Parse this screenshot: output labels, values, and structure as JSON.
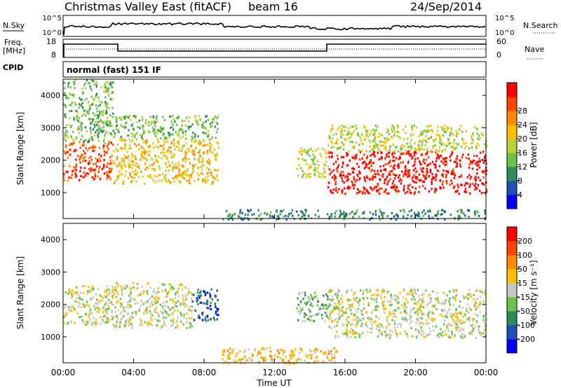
{
  "header": {
    "title": "Christmas Valley East (fitACF)",
    "beam": "beam 16",
    "date": "24/Sep/2014"
  },
  "summary": {
    "nsky_label": "N.Sky",
    "nsky_ticks": [
      "10^5",
      "10^0"
    ],
    "nsearch_label": "N.Search",
    "nsearch_ticks": [
      "10^5",
      "10^0"
    ],
    "freq_label": "Freq.",
    "freq_unit": "[MHz]",
    "freq_ticks": [
      "18",
      "8"
    ],
    "nave_label": "Nave",
    "nave_ticks": [
      "60",
      "0"
    ],
    "cpid_label": "CPID",
    "cpid_text": "normal (fast) 151 IF"
  },
  "chart_data": [
    {
      "type": "heatmap",
      "name": "power-panel",
      "ylabel": "Slant Range [km]",
      "yticks": [
        1000,
        2000,
        3000,
        4000
      ],
      "ylim": [
        200,
        4500
      ],
      "xlim": [
        0,
        24
      ],
      "colorbar": {
        "label": "Power [dB]",
        "ticks": [
          "4",
          "8",
          "12",
          "16",
          "20",
          "24",
          "28"
        ],
        "colors": [
          "#0000ff",
          "#1f4fb0",
          "#2e8b57",
          "#6ac24a",
          "#b8d435",
          "#ffc000",
          "#ff8c00",
          "#ff4500",
          "#ff0000"
        ]
      },
      "regions": [
        {
          "t": [
            0.0,
            2.8
          ],
          "r": [
            1400,
            2600
          ],
          "level": 7
        },
        {
          "t": [
            0.0,
            2.8
          ],
          "r": [
            2600,
            4500
          ],
          "level": 3
        },
        {
          "t": [
            2.8,
            8.8
          ],
          "r": [
            1300,
            2700
          ],
          "level": 5
        },
        {
          "t": [
            2.8,
            8.8
          ],
          "r": [
            2700,
            3400
          ],
          "level": 3
        },
        {
          "t": [
            13.2,
            15.0
          ],
          "r": [
            1500,
            2400
          ],
          "level": 4
        },
        {
          "t": [
            15.0,
            24.0
          ],
          "r": [
            1000,
            2300
          ],
          "level": 8
        },
        {
          "t": [
            15.0,
            24.0
          ],
          "r": [
            2300,
            3100
          ],
          "level": 4
        },
        {
          "t": [
            9.0,
            24.0
          ],
          "r": [
            200,
            500
          ],
          "level": 2
        }
      ]
    },
    {
      "type": "heatmap",
      "name": "velocity-panel",
      "ylabel": "Slant Range [km]",
      "yticks": [
        1000,
        2000,
        3000,
        4000
      ],
      "ylim": [
        200,
        4500
      ],
      "xlim": [
        0,
        24
      ],
      "xlabel": "Time UT",
      "xticks": [
        "00:00",
        "04:00",
        "08:00",
        "12:00",
        "16:00",
        "20:00",
        "00:00"
      ],
      "colorbar": {
        "label": "Velocity [m s⁻¹]",
        "ticks": [
          "200",
          "100",
          "50",
          "15",
          "-15",
          "-50",
          "-100",
          "-200"
        ],
        "colors": [
          "#0000ff",
          "#1f4fb0",
          "#2e8b57",
          "#6ac24a",
          "#c8c8c0",
          "#ffc000",
          "#ff8c00",
          "#ff4500",
          "#ff0000"
        ]
      },
      "regions": [
        {
          "t": [
            0.0,
            2.8
          ],
          "r": [
            1400,
            2600
          ],
          "level": 4
        },
        {
          "t": [
            2.8,
            7.3
          ],
          "r": [
            1300,
            2700
          ],
          "level": 4
        },
        {
          "t": [
            7.3,
            8.8
          ],
          "r": [
            1500,
            2500
          ],
          "level": 1
        },
        {
          "t": [
            13.2,
            15.0
          ],
          "r": [
            1500,
            2400
          ],
          "level": 3
        },
        {
          "t": [
            15.0,
            24.0
          ],
          "r": [
            1000,
            2500
          ],
          "level": 4
        },
        {
          "t": [
            9.0,
            15.5
          ],
          "r": [
            200,
            700
          ],
          "level": 5
        }
      ]
    }
  ]
}
